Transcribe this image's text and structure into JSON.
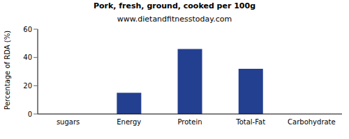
{
  "chart_data": {
    "type": "bar",
    "title": "Pork, fresh, ground, cooked per 100g",
    "subtitle": "www.dietandfitnesstoday.com",
    "y_label": "Percentage of RDA (%)",
    "categories": [
      "sugars",
      "Energy",
      "Protein",
      "Total-Fat",
      "Carbohydrate"
    ],
    "values": [
      0,
      15,
      46,
      32,
      0
    ],
    "color": "#233f8f",
    "ylim": [
      0,
      60
    ],
    "yticks": [
      0,
      20,
      40,
      60
    ],
    "grid": false
  }
}
